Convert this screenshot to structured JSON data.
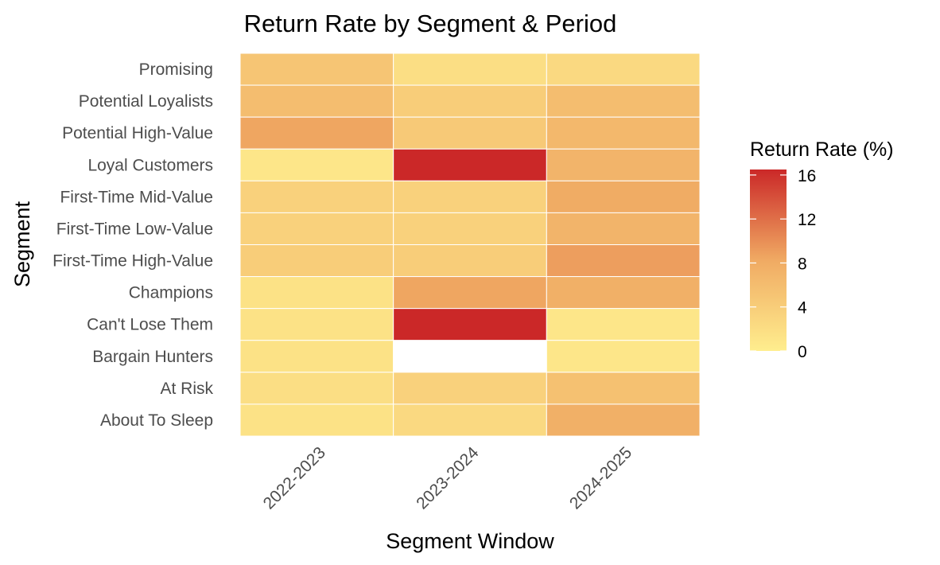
{
  "chart_data": {
    "type": "heatmap",
    "title": "Return Rate by Segment & Period",
    "xlabel": "Segment Window",
    "ylabel": "Segment",
    "x_categories": [
      "2022-2023",
      "2023-2024",
      "2024-2025"
    ],
    "y_categories": [
      "Promising",
      "Potential Loyalists",
      "Potential High-Value",
      "Loyal Customers",
      "First-Time Mid-Value",
      "First-Time Low-Value",
      "First-Time High-Value",
      "Champions",
      "Can't Lose Them",
      "Bargain Hunters",
      "At Risk",
      "About To Sleep"
    ],
    "values": [
      [
        5.0,
        2.0,
        2.5
      ],
      [
        6.0,
        4.0,
        6.0
      ],
      [
        8.5,
        4.5,
        6.5
      ],
      [
        1.0,
        16.5,
        7.0
      ],
      [
        3.5,
        3.5,
        8.0
      ],
      [
        3.5,
        3.5,
        7.0
      ],
      [
        4.0,
        4.0,
        9.0
      ],
      [
        1.5,
        8.5,
        7.5
      ],
      [
        1.5,
        16.5,
        1.0
      ],
      [
        1.5,
        null,
        1.0
      ],
      [
        2.0,
        3.5,
        5.5
      ],
      [
        1.5,
        2.5,
        7.5
      ]
    ],
    "legend": {
      "title": "Return Rate (%)",
      "ticks": [
        0,
        4,
        8,
        12,
        16
      ],
      "min": 0,
      "max": 16.5,
      "placement": "right"
    },
    "colors": {
      "low": "#FFEE8E",
      "mid": "#F0AA63",
      "high": "#CB2828",
      "missing": "#FFFFFF"
    }
  }
}
